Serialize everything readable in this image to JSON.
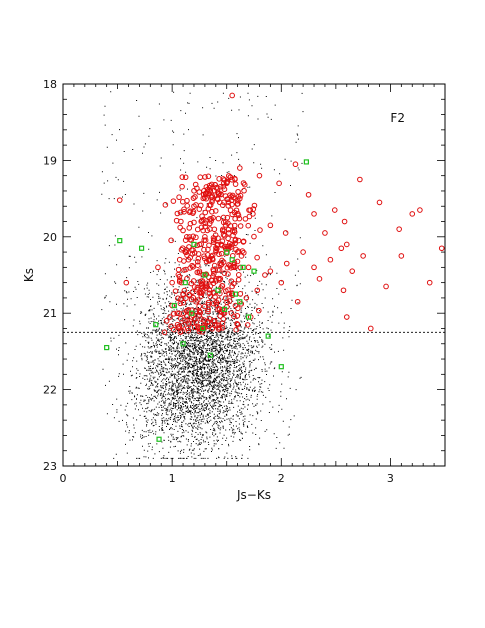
{
  "chart_data": {
    "type": "scatter",
    "panel_label": "F2",
    "xlabel": "Js−Ks",
    "ylabel": "Ks",
    "xlim": [
      0,
      3.5
    ],
    "ylim": [
      23,
      18
    ],
    "y_inverted": true,
    "xticks": [
      0,
      1,
      2,
      3
    ],
    "yticks": [
      18,
      19,
      20,
      21,
      22,
      23
    ],
    "grid": false,
    "legend": "none",
    "reference_line": {
      "y": 21.25,
      "style": "dashed"
    },
    "colors": {
      "stars": "#000000",
      "circles": "#e01010",
      "squares": "#20c020"
    },
    "series": [
      {
        "marker": "dot",
        "color": "#000000",
        "approx_count": 6000,
        "x_center": 1.25,
        "y_center": 21.7,
        "x_range": [
          0.35,
          2.2
        ],
        "y_range": [
          18.1,
          22.9
        ]
      },
      {
        "marker": "open-circle",
        "color": "#e01010",
        "x": [
          1.55,
          0.52,
          1.62,
          1.8,
          1.98,
          2.13,
          2.25,
          2.3,
          2.49,
          2.72,
          2.58,
          2.9,
          3.08,
          3.2,
          3.27,
          3.47,
          3.36,
          3.1,
          2.96,
          2.57,
          2.6,
          2.3,
          2.15,
          2.82,
          2.6,
          0.87,
          0.58,
          1.08,
          1.2,
          1.35,
          1.5,
          1.62,
          1.74,
          1.9,
          2.04,
          1.3,
          1.45,
          1.6,
          1.15,
          1.25,
          1.4,
          1.55,
          1.7,
          1.85,
          1.0,
          1.1,
          1.22,
          1.33,
          1.47,
          1.58,
          1.68,
          1.78,
          0.95,
          1.05,
          1.18,
          1.28,
          1.38,
          1.48,
          1.6,
          1.72,
          2.2,
          2.4,
          2.05,
          2.35,
          2.45,
          2.55,
          2.65,
          2.75,
          0.93,
          1.0,
          0.98,
          1.12,
          1.38,
          1.52,
          1.9,
          2.0
        ],
        "y": [
          18.15,
          19.52,
          19.1,
          19.2,
          19.3,
          19.05,
          19.45,
          19.7,
          19.65,
          19.25,
          19.8,
          19.55,
          19.9,
          19.7,
          19.65,
          20.15,
          20.6,
          20.25,
          20.65,
          20.7,
          20.1,
          20.4,
          20.85,
          21.2,
          21.05,
          20.4,
          20.6,
          19.8,
          19.6,
          19.4,
          19.3,
          19.5,
          19.7,
          19.85,
          19.95,
          20.0,
          20.1,
          20.2,
          20.3,
          20.45,
          20.55,
          20.65,
          20.4,
          20.5,
          20.6,
          20.75,
          20.85,
          20.95,
          21.0,
          20.9,
          20.8,
          20.7,
          21.1,
          21.15,
          21.05,
          21.2,
          21.1,
          21.0,
          21.15,
          21.05,
          20.2,
          19.95,
          20.35,
          20.55,
          20.3,
          20.15,
          20.45,
          20.25,
          21.25,
          20.9,
          21.05,
          20.2,
          20.05,
          19.95,
          20.45,
          20.6
        ],
        "approx_count": 520
      },
      {
        "marker": "open-square",
        "color": "#20c020",
        "x": [
          2.23,
          0.52,
          0.72,
          1.2,
          1.5,
          1.75,
          1.3,
          1.42,
          1.58,
          1.62,
          1.02,
          1.18,
          0.85,
          1.7,
          1.88,
          0.4,
          0.88,
          1.1,
          1.35,
          1.48,
          1.55,
          1.12,
          1.28,
          1.65,
          2.0
        ],
        "y": [
          19.02,
          20.05,
          20.15,
          20.1,
          20.2,
          20.45,
          20.5,
          20.7,
          20.75,
          20.85,
          20.9,
          21.0,
          21.15,
          21.05,
          21.3,
          21.45,
          22.65,
          21.4,
          21.55,
          20.95,
          20.3,
          20.6,
          21.2,
          20.4,
          21.7
        ],
        "approx_count": 28
      }
    ]
  }
}
